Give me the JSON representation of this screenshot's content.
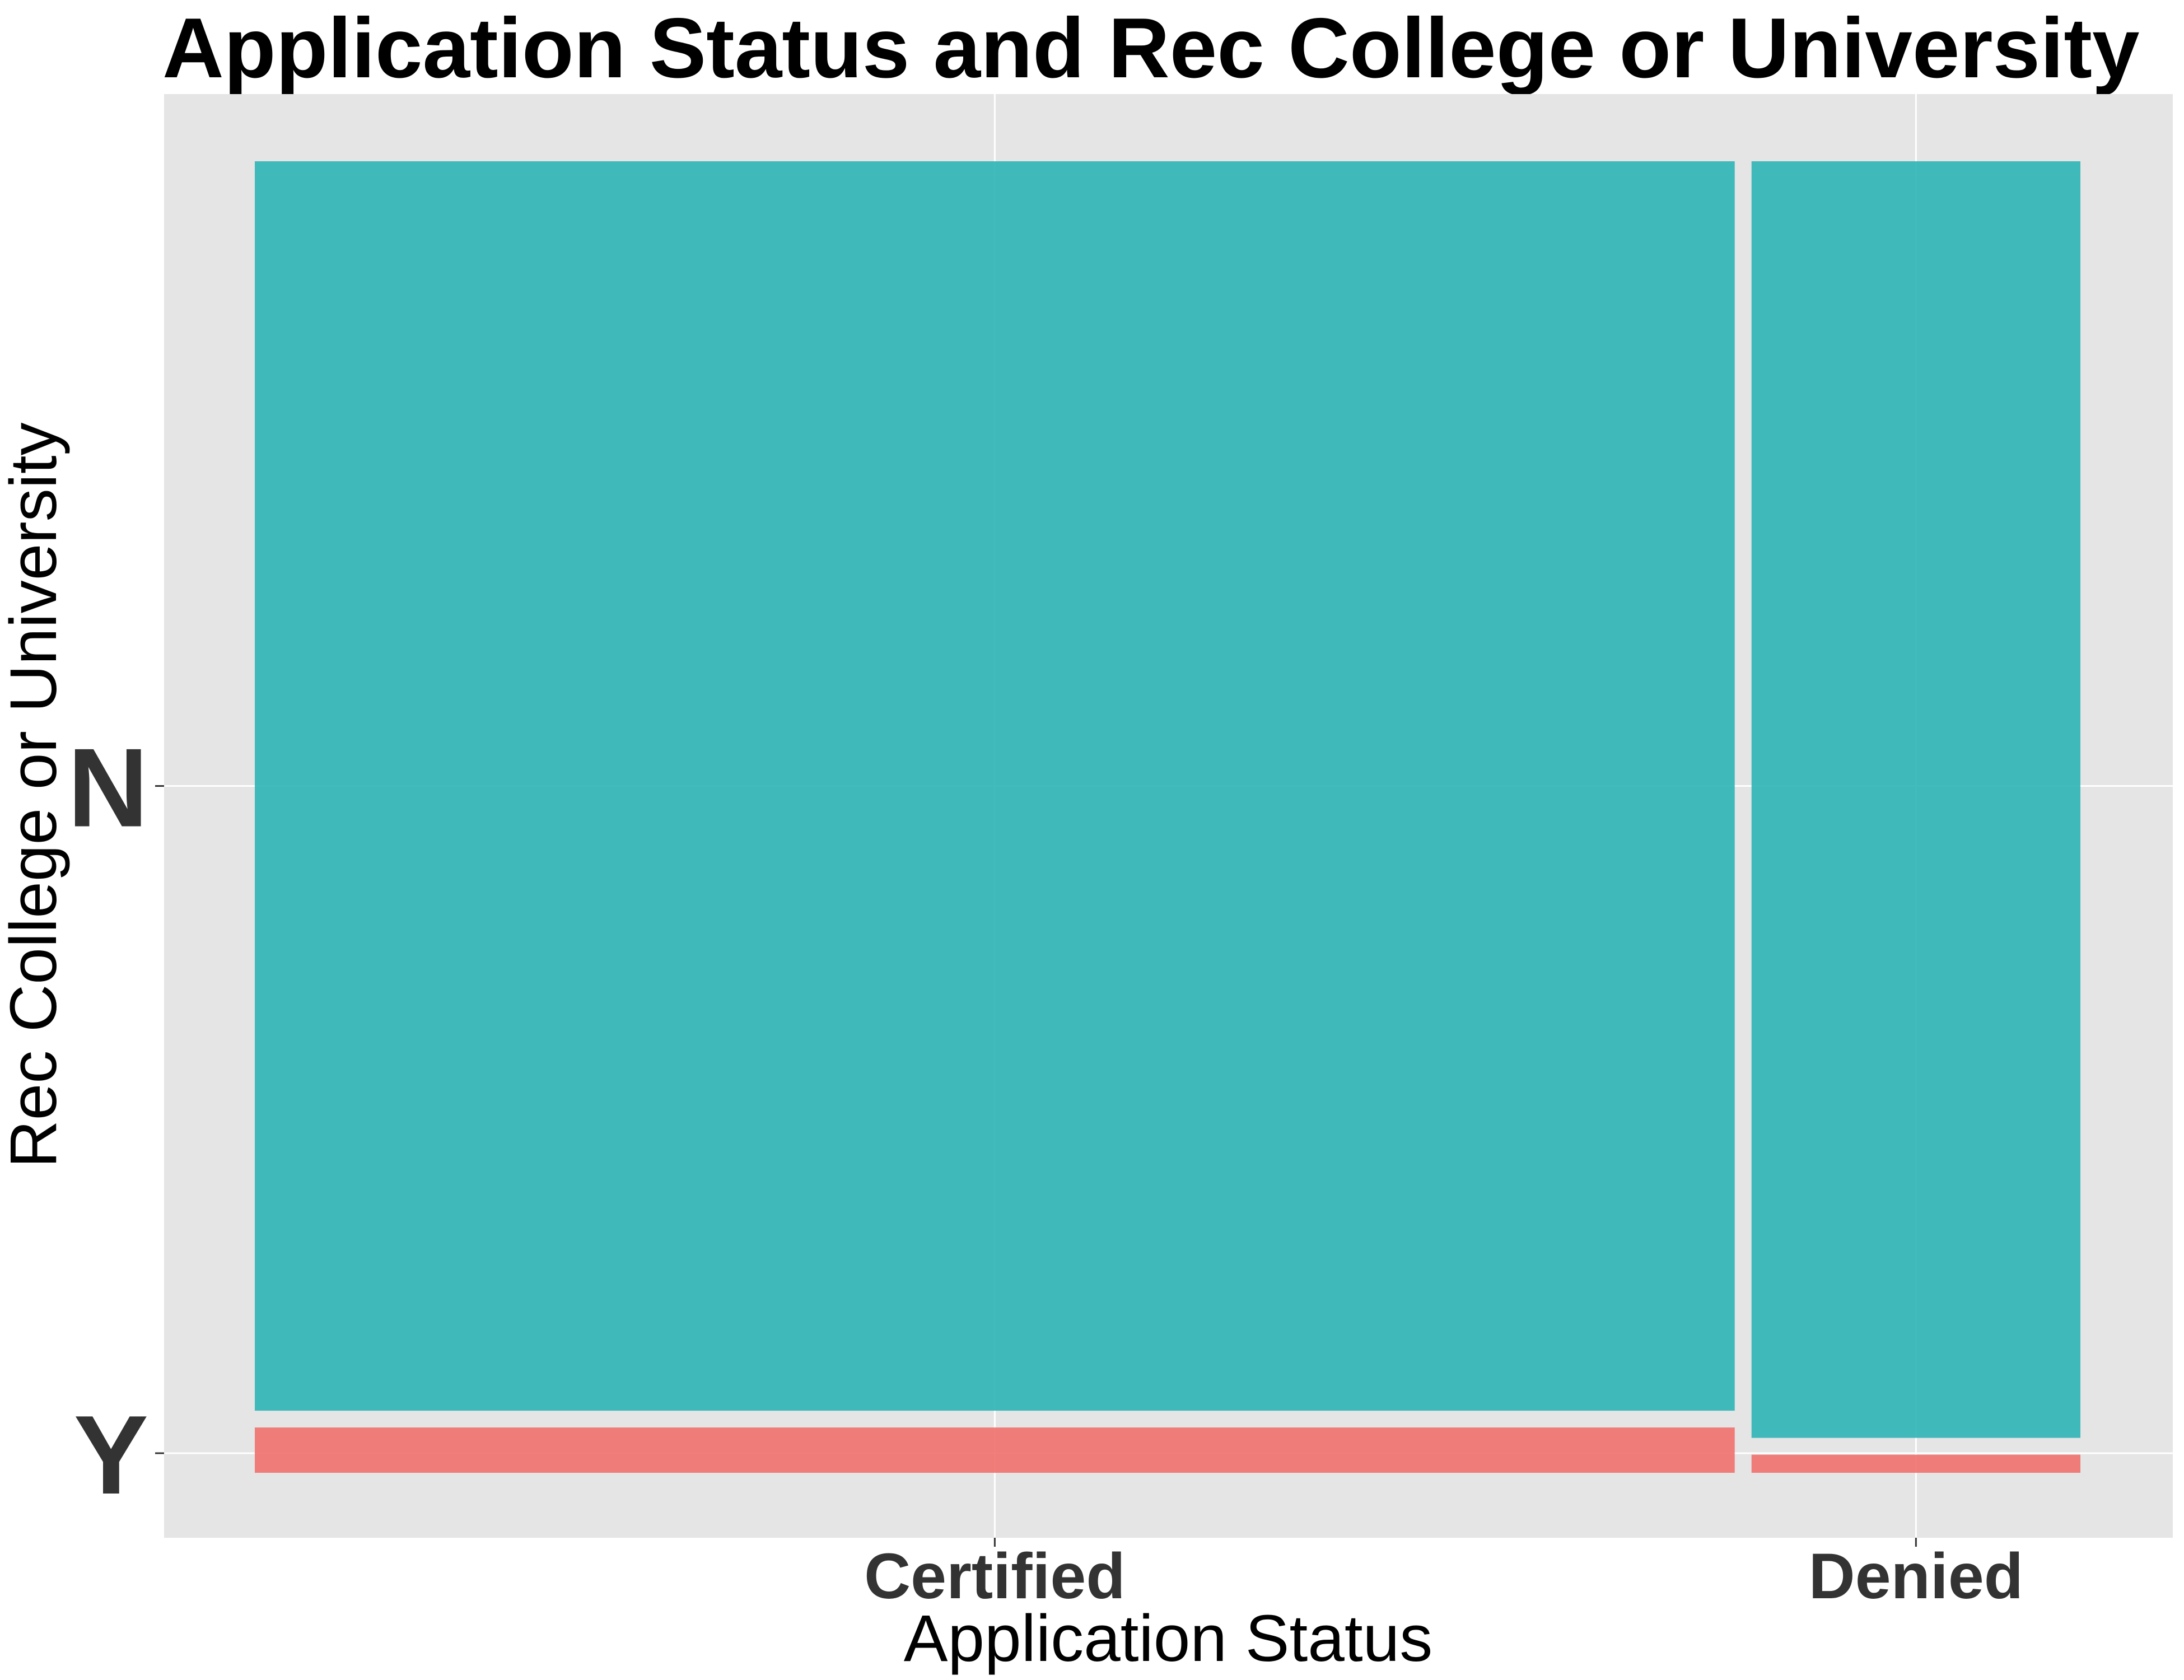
{
  "chart_data": {
    "type": "mosaic",
    "title": "Application Status and Rec College or University",
    "xlabel": "Application Status",
    "ylabel": "Rec College or University",
    "categories": [
      "Certified",
      "Denied"
    ],
    "category_share": [
      0.81,
      0.18
    ],
    "y_levels": [
      "Y",
      "N"
    ],
    "series": [
      {
        "name": "Y",
        "color": "#F07470",
        "values": [
          0.035,
          0.014
        ]
      },
      {
        "name": "N",
        "color": "#34B6B8",
        "values": [
          0.965,
          0.986
        ]
      }
    ],
    "grid": true,
    "legend": "none",
    "panel_background": "#E5E5E5",
    "gridline_color": "#FFFFFF"
  }
}
